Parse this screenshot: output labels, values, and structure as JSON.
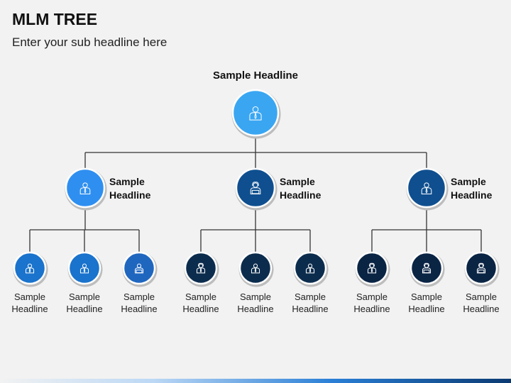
{
  "header": {
    "title": "MLM TREE",
    "subtitle": "Enter your sub headline here"
  },
  "colors": {
    "root": "#3aa6f2",
    "level1": [
      "#2e8ff0",
      "#0f4f8f",
      "#0f4f8f"
    ],
    "level2": [
      "#1a73cc",
      "#1a73cc",
      "#1f66bf",
      "#0c2c4d",
      "#0c2c4d",
      "#0c2c4d",
      "#0a2444",
      "#0a2444",
      "#0a2444"
    ],
    "connector": "#333333",
    "node_border": "#ffffff"
  },
  "tree": {
    "root": {
      "label": "Sample Headline",
      "icon": "businessman-icon"
    },
    "level1": [
      {
        "label_line1": "Sample",
        "label_line2": "Headline",
        "icon": "businessman-icon"
      },
      {
        "label_line1": "Sample",
        "label_line2": "Headline",
        "icon": "woman-laptop-icon"
      },
      {
        "label_line1": "Sample",
        "label_line2": "Headline",
        "icon": "businessman-icon"
      }
    ],
    "level2": [
      {
        "label_line1": "Sample",
        "label_line2": "Headline",
        "icon": "businessman-icon"
      },
      {
        "label_line1": "Sample",
        "label_line2": "Headline",
        "icon": "businessman-icon"
      },
      {
        "label_line1": "Sample",
        "label_line2": "Headline",
        "icon": "man-laptop-icon"
      },
      {
        "label_line1": "Sample",
        "label_line2": "Headline",
        "icon": "woman-icon"
      },
      {
        "label_line1": "Sample",
        "label_line2": "Headline",
        "icon": "businessman-icon"
      },
      {
        "label_line1": "Sample",
        "label_line2": "Headline",
        "icon": "businessman-icon"
      },
      {
        "label_line1": "Sample",
        "label_line2": "Headline",
        "icon": "woman-icon"
      },
      {
        "label_line1": "Sample",
        "label_line2": "Headline",
        "icon": "woman-laptop-icon"
      },
      {
        "label_line1": "Sample",
        "label_line2": "Headline",
        "icon": "woman-laptop-icon"
      }
    ]
  }
}
